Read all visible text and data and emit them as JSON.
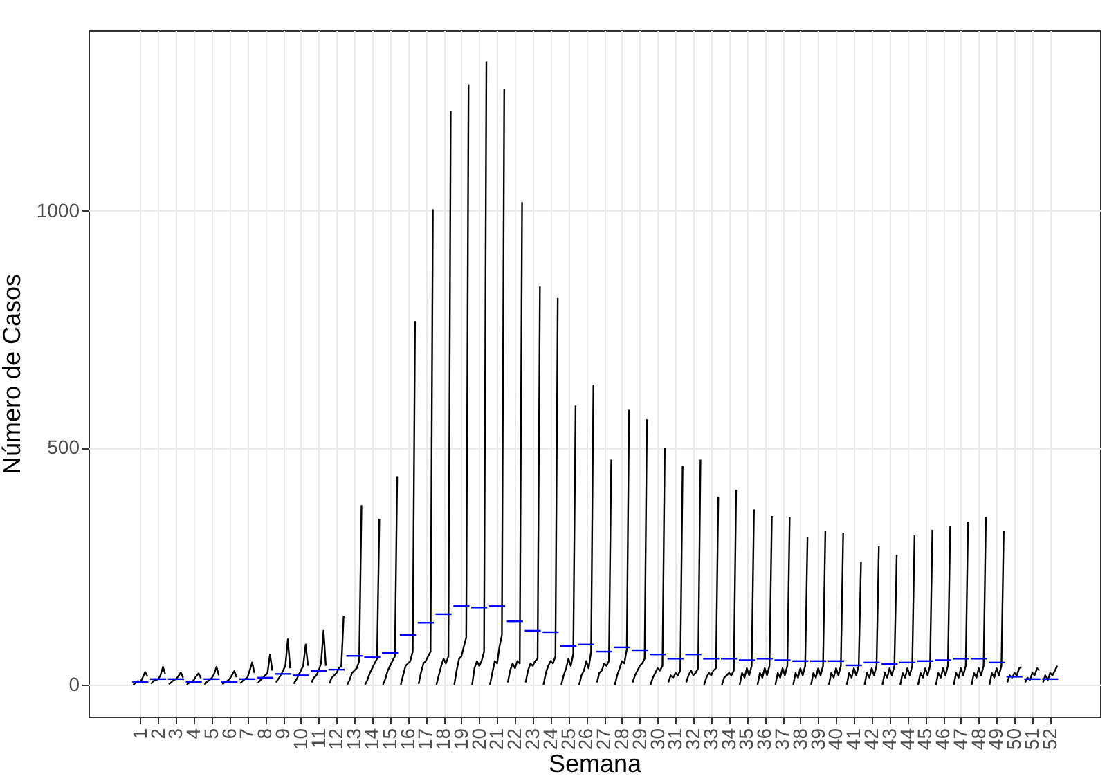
{
  "chart_data": {
    "type": "line",
    "xlabel": "Semana",
    "ylabel": "Número de Casos",
    "xlim": [
      -1.9,
      54.8
    ],
    "ylim": [
      -67,
      1380
    ],
    "xticks": [
      1,
      2,
      3,
      4,
      5,
      6,
      7,
      8,
      9,
      10,
      11,
      12,
      13,
      14,
      15,
      16,
      17,
      18,
      19,
      20,
      21,
      22,
      23,
      24,
      25,
      26,
      27,
      28,
      29,
      30,
      31,
      32,
      33,
      34,
      35,
      36,
      37,
      38,
      39,
      40,
      41,
      42,
      43,
      44,
      45,
      46,
      47,
      48,
      49,
      50,
      51,
      52
    ],
    "yticks": [
      0,
      500,
      1000
    ],
    "grid": true,
    "line_style": "solid",
    "marker": "none",
    "series": [
      {
        "color": "#000000",
        "x": [
          0.6,
          0.73,
          0.87,
          1,
          1.13,
          1.27,
          1.4,
          null,
          1.6,
          1.73,
          1.87,
          2,
          2.13,
          2.27,
          2.4,
          null,
          2.6,
          2.73,
          2.87,
          3,
          3.13,
          3.27,
          3.4,
          null,
          3.6,
          3.73,
          3.87,
          4,
          4.13,
          4.27,
          4.4,
          null,
          4.6,
          4.73,
          4.87,
          5,
          5.13,
          5.27,
          5.4,
          null,
          5.6,
          5.73,
          5.87,
          6,
          6.13,
          6.27,
          6.4,
          null,
          6.6,
          6.73,
          6.87,
          7,
          7.13,
          7.27,
          7.4,
          null,
          7.6,
          7.73,
          7.87,
          8,
          8.13,
          8.27,
          8.4,
          null,
          8.6,
          8.73,
          8.87,
          9,
          9.13,
          9.27,
          9.4,
          null,
          9.6,
          9.73,
          9.87,
          10,
          10.13,
          10.27,
          10.4,
          null,
          10.6,
          10.73,
          10.87,
          11,
          11.13,
          11.27,
          11.4,
          null,
          11.6,
          11.73,
          11.87,
          12,
          12.13,
          12.27,
          12.4,
          null,
          12.6,
          12.73,
          12.87,
          13,
          13.13,
          13.27,
          13.4,
          null,
          13.6,
          13.73,
          13.87,
          14,
          14.13,
          14.27,
          14.4,
          null,
          14.6,
          14.73,
          14.87,
          15,
          15.13,
          15.27,
          15.4,
          null,
          15.6,
          15.73,
          15.87,
          16,
          16.13,
          16.27,
          16.4,
          null,
          16.6,
          16.73,
          16.87,
          17,
          17.13,
          17.27,
          17.4,
          null,
          17.6,
          17.73,
          17.87,
          18,
          18.13,
          18.27,
          18.4,
          null,
          18.6,
          18.73,
          18.87,
          19,
          19.13,
          19.27,
          19.4,
          null,
          19.6,
          19.73,
          19.87,
          20,
          20.13,
          20.27,
          20.4,
          null,
          20.6,
          20.73,
          20.87,
          21,
          21.13,
          21.27,
          21.4,
          null,
          21.6,
          21.73,
          21.87,
          22,
          22.13,
          22.27,
          22.4,
          null,
          22.6,
          22.73,
          22.87,
          23,
          23.13,
          23.27,
          23.4,
          null,
          23.6,
          23.73,
          23.87,
          24,
          24.13,
          24.27,
          24.4,
          null,
          24.6,
          24.73,
          24.87,
          25,
          25.13,
          25.27,
          25.4,
          null,
          25.6,
          25.73,
          25.87,
          26,
          26.13,
          26.27,
          26.4,
          null,
          26.6,
          26.73,
          26.87,
          27,
          27.13,
          27.27,
          27.4,
          null,
          27.6,
          27.73,
          27.87,
          28,
          28.13,
          28.27,
          28.4,
          null,
          28.6,
          28.73,
          28.87,
          29,
          29.13,
          29.27,
          29.4,
          null,
          29.6,
          29.73,
          29.87,
          30,
          30.13,
          30.27,
          30.4,
          null,
          30.6,
          30.73,
          30.87,
          31,
          31.13,
          31.27,
          31.4,
          null,
          31.6,
          31.73,
          31.87,
          32,
          32.13,
          32.27,
          32.4,
          null,
          32.6,
          32.73,
          32.87,
          33,
          33.13,
          33.27,
          33.4,
          null,
          33.6,
          33.73,
          33.87,
          34,
          34.13,
          34.27,
          34.4,
          null,
          34.6,
          34.73,
          34.87,
          35,
          35.13,
          35.27,
          35.4,
          null,
          35.6,
          35.73,
          35.87,
          36,
          36.13,
          36.27,
          36.4,
          null,
          36.6,
          36.73,
          36.87,
          37,
          37.13,
          37.27,
          37.4,
          null,
          37.6,
          37.73,
          37.87,
          38,
          38.13,
          38.27,
          38.4,
          null,
          38.6,
          38.73,
          38.87,
          39,
          39.13,
          39.27,
          39.4,
          null,
          39.6,
          39.73,
          39.87,
          40,
          40.13,
          40.27,
          40.4,
          null,
          40.6,
          40.73,
          40.87,
          41,
          41.13,
          41.27,
          41.4,
          null,
          41.6,
          41.73,
          41.87,
          42,
          42.13,
          42.27,
          42.4,
          null,
          42.6,
          42.73,
          42.87,
          43,
          43.13,
          43.27,
          43.4,
          null,
          43.6,
          43.73,
          43.87,
          44,
          44.13,
          44.27,
          44.4,
          null,
          44.6,
          44.73,
          44.87,
          45,
          45.13,
          45.27,
          45.4,
          null,
          45.6,
          45.73,
          45.87,
          46,
          46.13,
          46.27,
          46.4,
          null,
          46.6,
          46.73,
          46.87,
          47,
          47.13,
          47.27,
          47.4,
          null,
          47.6,
          47.73,
          47.87,
          48,
          48.13,
          48.27,
          48.4,
          null,
          48.6,
          48.73,
          48.87,
          49,
          49.13,
          49.27,
          49.4,
          null,
          49.6,
          49.73,
          49.87,
          50,
          50.13,
          50.27,
          50.4,
          null,
          50.6,
          50.73,
          50.87,
          51,
          51.13,
          51.27,
          51.4,
          null,
          51.6,
          51.73,
          51.87,
          52,
          52.13,
          52.27,
          52.4
        ],
        "values": [
          0,
          4,
          8,
          5,
          15,
          27,
          18,
          null,
          2,
          8,
          10,
          12,
          20,
          38,
          22,
          null,
          1,
          5,
          10,
          12,
          18,
          26,
          15,
          null,
          0,
          4,
          6,
          10,
          18,
          24,
          14,
          null,
          0,
          6,
          10,
          14,
          22,
          38,
          20,
          null,
          1,
          5,
          8,
          12,
          20,
          29,
          16,
          null,
          3,
          8,
          12,
          15,
          30,
          47,
          25,
          null,
          4,
          10,
          14,
          20,
          25,
          64,
          30,
          null,
          5,
          12,
          20,
          30,
          40,
          96,
          35,
          null,
          2,
          10,
          20,
          30,
          40,
          85,
          40,
          null,
          5,
          15,
          20,
          30,
          45,
          114,
          40,
          null,
          3,
          15,
          20,
          25,
          35,
          40,
          146,
          null,
          0,
          10,
          25,
          30,
          35,
          50,
          379,
          null,
          0,
          10,
          25,
          35,
          45,
          55,
          350,
          null,
          0,
          12,
          30,
          40,
          50,
          60,
          440,
          null,
          0,
          20,
          40,
          45,
          50,
          70,
          767,
          null,
          2,
          25,
          45,
          50,
          60,
          70,
          1003,
          null,
          0,
          20,
          40,
          55,
          45,
          60,
          1210,
          null,
          0,
          30,
          55,
          60,
          80,
          100,
          1265,
          null,
          0,
          35,
          50,
          40,
          50,
          70,
          1315,
          null,
          0,
          25,
          50,
          45,
          80,
          105,
          1257,
          null,
          5,
          30,
          45,
          35,
          50,
          45,
          1018,
          null,
          5,
          30,
          45,
          40,
          50,
          55,
          840,
          null,
          0,
          25,
          40,
          50,
          45,
          60,
          816,
          null,
          0,
          20,
          35,
          55,
          40,
          65,
          589,
          null,
          0,
          20,
          30,
          50,
          35,
          70,
          633,
          null,
          5,
          25,
          30,
          45,
          40,
          50,
          475,
          null,
          0,
          20,
          35,
          50,
          45,
          75,
          580,
          null,
          5,
          20,
          30,
          40,
          45,
          55,
          560,
          null,
          0,
          15,
          25,
          35,
          30,
          40,
          499,
          null,
          5,
          20,
          15,
          25,
          20,
          30,
          461,
          null,
          5,
          20,
          30,
          20,
          25,
          35,
          475,
          null,
          0,
          15,
          25,
          20,
          30,
          35,
          397,
          null,
          0,
          15,
          20,
          25,
          20,
          30,
          411,
          null,
          0,
          25,
          15,
          35,
          20,
          40,
          370,
          null,
          0,
          25,
          15,
          35,
          20,
          40,
          356,
          null,
          0,
          25,
          15,
          35,
          20,
          40,
          353,
          null,
          0,
          25,
          15,
          35,
          20,
          40,
          312,
          null,
          0,
          25,
          15,
          35,
          20,
          40,
          324,
          null,
          0,
          25,
          15,
          35,
          20,
          40,
          321,
          null,
          0,
          25,
          15,
          35,
          20,
          40,
          259,
          null,
          0,
          25,
          15,
          35,
          20,
          40,
          292,
          null,
          0,
          25,
          15,
          35,
          20,
          40,
          274,
          null,
          0,
          25,
          15,
          35,
          20,
          40,
          315,
          null,
          0,
          25,
          15,
          35,
          20,
          40,
          327,
          null,
          0,
          25,
          15,
          35,
          20,
          40,
          335,
          null,
          0,
          25,
          15,
          35,
          20,
          40,
          344,
          null,
          0,
          25,
          15,
          35,
          20,
          40,
          353,
          null,
          0,
          25,
          15,
          35,
          20,
          40,
          324,
          null,
          5,
          20,
          15,
          25,
          20,
          35,
          38,
          null,
          5,
          15,
          10,
          25,
          20,
          35,
          30,
          null,
          5,
          20,
          10,
          25,
          20,
          30,
          40
        ]
      },
      {
        "color": "#0000ff",
        "x": [
          0.55,
          1.45,
          null,
          1.55,
          2.45,
          null,
          2.55,
          3.45,
          null,
          3.55,
          4.45,
          null,
          4.55,
          5.45,
          null,
          5.55,
          6.45,
          null,
          6.55,
          7.45,
          null,
          7.55,
          8.45,
          null,
          8.55,
          9.45,
          null,
          9.55,
          10.45,
          null,
          10.55,
          11.45,
          null,
          11.55,
          12.45,
          null,
          12.55,
          13.45,
          null,
          13.55,
          14.45,
          null,
          14.55,
          15.45,
          null,
          15.55,
          16.45,
          null,
          16.55,
          17.45,
          null,
          17.55,
          18.45,
          null,
          18.55,
          19.45,
          null,
          19.55,
          20.45,
          null,
          20.55,
          21.45,
          null,
          21.55,
          22.45,
          null,
          22.55,
          23.45,
          null,
          23.55,
          24.45,
          null,
          24.55,
          25.45,
          null,
          25.55,
          26.45,
          null,
          26.55,
          27.45,
          null,
          27.55,
          28.45,
          null,
          28.55,
          29.45,
          null,
          29.55,
          30.45,
          null,
          30.55,
          31.45,
          null,
          31.55,
          32.45,
          null,
          32.55,
          33.45,
          null,
          33.55,
          34.45,
          null,
          34.55,
          35.45,
          null,
          35.55,
          36.45,
          null,
          36.55,
          37.45,
          null,
          37.55,
          38.45,
          null,
          38.55,
          39.45,
          null,
          39.55,
          40.45,
          null,
          40.55,
          41.45,
          null,
          41.55,
          42.45,
          null,
          42.55,
          43.45,
          null,
          43.55,
          44.45,
          null,
          44.55,
          45.45,
          null,
          45.55,
          46.45,
          null,
          46.55,
          47.45,
          null,
          47.55,
          48.45,
          null,
          48.55,
          49.45,
          null,
          49.55,
          50.45,
          null,
          50.55,
          51.45,
          null,
          51.55,
          52.45
        ],
        "values": [
          6,
          6,
          null,
          12,
          12,
          null,
          12,
          12,
          null,
          6,
          6,
          null,
          12,
          12,
          null,
          6,
          6,
          null,
          12,
          12,
          null,
          15,
          15,
          null,
          23,
          23,
          null,
          20,
          20,
          null,
          29,
          29,
          null,
          32,
          32,
          null,
          61,
          61,
          null,
          58,
          58,
          null,
          67,
          67,
          null,
          105,
          105,
          null,
          131,
          131,
          null,
          149,
          149,
          null,
          166,
          166,
          null,
          163,
          163,
          null,
          166,
          166,
          null,
          134,
          134,
          null,
          114,
          114,
          null,
          111,
          111,
          null,
          82,
          82,
          null,
          85,
          85,
          null,
          70,
          70,
          null,
          79,
          79,
          null,
          73,
          73,
          null,
          64,
          64,
          null,
          55,
          55,
          null,
          64,
          64,
          null,
          55,
          55,
          null,
          55,
          55,
          null,
          52,
          52,
          null,
          55,
          55,
          null,
          52,
          52,
          null,
          50,
          50,
          null,
          50,
          50,
          null,
          50,
          50,
          null,
          41,
          41,
          null,
          47,
          47,
          null,
          44,
          44,
          null,
          47,
          47,
          null,
          50,
          50,
          null,
          52,
          52,
          null,
          55,
          55,
          null,
          55,
          55,
          null,
          47,
          47,
          null,
          17,
          17,
          null,
          12,
          12,
          null,
          12,
          12
        ]
      }
    ]
  }
}
